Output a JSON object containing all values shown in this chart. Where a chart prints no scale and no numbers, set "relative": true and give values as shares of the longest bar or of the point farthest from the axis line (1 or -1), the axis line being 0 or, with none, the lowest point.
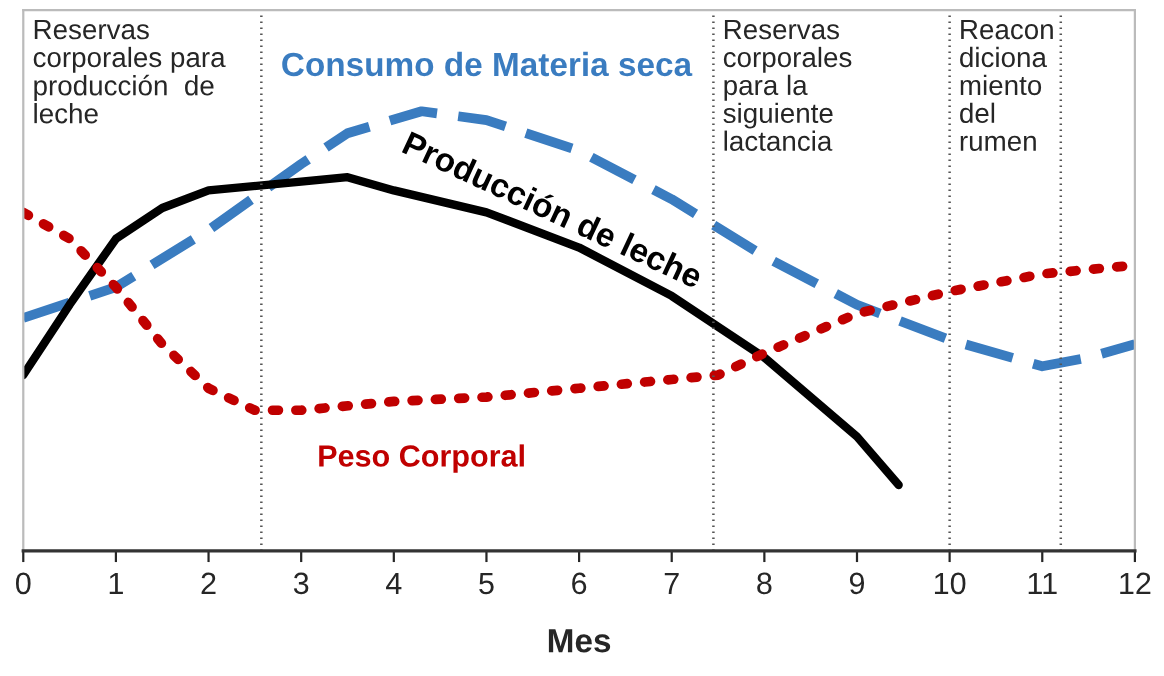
{
  "chart_data": {
    "type": "line",
    "relative": true,
    "xlabel": "Mes",
    "xlim": [
      0,
      12
    ],
    "xticks": [
      0,
      1,
      2,
      3,
      4,
      5,
      6,
      7,
      8,
      9,
      10,
      11,
      12
    ],
    "tick_labels": "x",
    "grid": false,
    "series": [
      {
        "name": "Consumo de Materia seca",
        "color": "#3a7cc0",
        "line_style": "dashed",
        "x": [
          0,
          1,
          2,
          3,
          3.5,
          4.3,
          5,
          6,
          7,
          8,
          9,
          10,
          11,
          11.5,
          12
        ],
        "values": [
          0.53,
          0.6,
          0.73,
          0.88,
          0.95,
          1.0,
          0.98,
          0.91,
          0.8,
          0.67,
          0.56,
          0.48,
          0.42,
          0.44,
          0.47
        ]
      },
      {
        "name": "Producción de leche",
        "color": "#000000",
        "line_style": "solid",
        "x": [
          0,
          0.5,
          1,
          1.5,
          2,
          3,
          3.5,
          4,
          5,
          6,
          7,
          8,
          9,
          9.45
        ],
        "values": [
          0.4,
          0.56,
          0.71,
          0.78,
          0.82,
          0.84,
          0.85,
          0.82,
          0.77,
          0.69,
          0.58,
          0.44,
          0.26,
          0.15
        ]
      },
      {
        "name": "Peso Corporal",
        "color": "#c00000",
        "line_style": "dotted",
        "x": [
          0,
          0.5,
          1,
          1.5,
          2,
          2.5,
          3,
          4,
          5,
          6,
          7,
          7.5,
          8,
          9,
          10,
          11,
          12
        ],
        "values": [
          0.77,
          0.71,
          0.6,
          0.47,
          0.37,
          0.32,
          0.32,
          0.34,
          0.35,
          0.37,
          0.39,
          0.4,
          0.45,
          0.54,
          0.59,
          0.63,
          0.65
        ]
      }
    ],
    "ref_lines": [
      {
        "axis": "x",
        "value": 2.57,
        "line_style": "dotted",
        "color": "#555555"
      },
      {
        "axis": "x",
        "value": 7.45,
        "line_style": "dotted",
        "color": "#555555"
      },
      {
        "axis": "x",
        "value": 10,
        "line_style": "dotted",
        "color": "#555555"
      },
      {
        "axis": "x",
        "value": 11.2,
        "line_style": "dotted",
        "color": "#555555"
      }
    ],
    "annotations": [
      "Reservas\ncorporales para\nproducción  de\nleche",
      "Reservas\ncorporales\npara la\nsiguiente\nlactancia",
      "Reacon\ndiciona\nmiento\ndel\nrumen"
    ]
  }
}
